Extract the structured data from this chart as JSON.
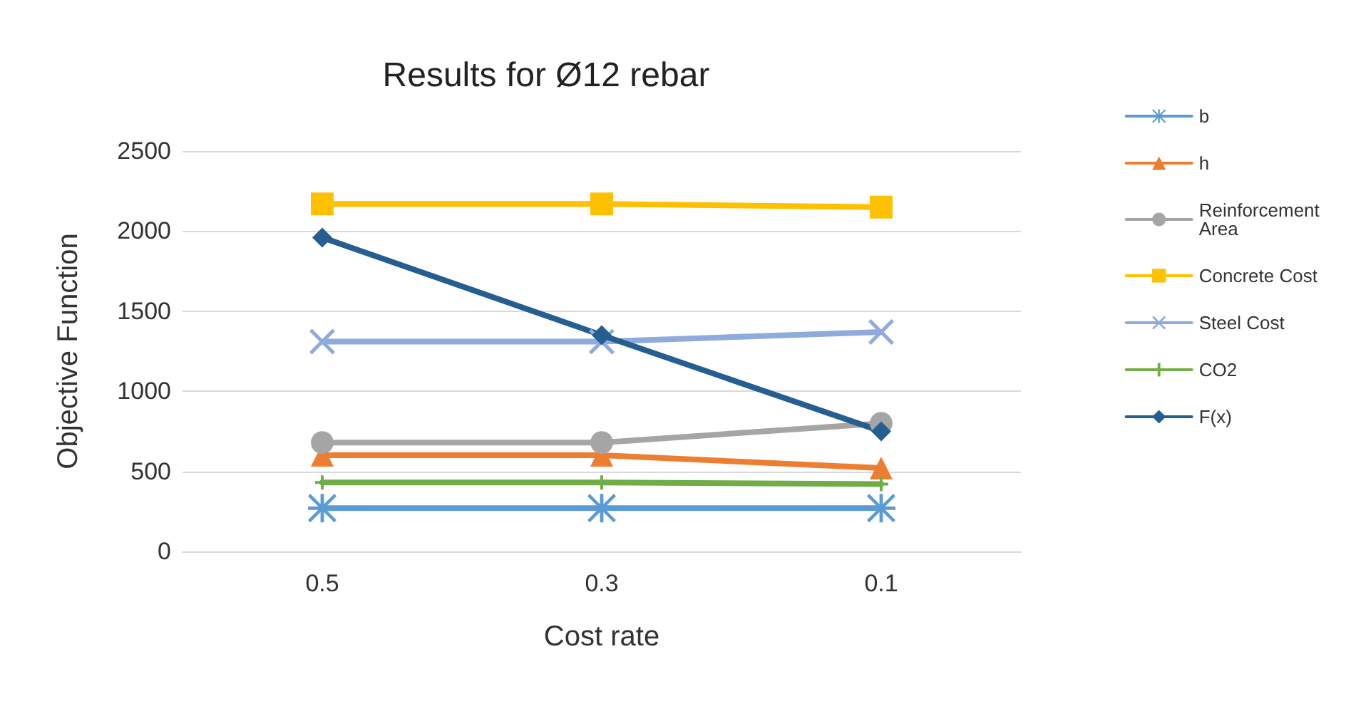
{
  "chart_data": {
    "type": "line",
    "title": "Results for Ø12 rebar",
    "xlabel": "Cost rate",
    "ylabel": "Objective Function",
    "categories": [
      "0.5",
      "0.3",
      "0.1"
    ],
    "series": [
      {
        "name": "b",
        "color": "#5b9bd5",
        "marker": "star",
        "values": [
          270,
          270,
          270
        ]
      },
      {
        "name": "h",
        "color": "#ed7d31",
        "marker": "triangle",
        "values": [
          600,
          600,
          520
        ]
      },
      {
        "name": "Reinforcement Area",
        "color": "#a5a5a5",
        "marker": "circle",
        "values": [
          680,
          680,
          800
        ]
      },
      {
        "name": "Concrete Cost",
        "color": "#ffc000",
        "marker": "square",
        "values": [
          2170,
          2170,
          2150
        ]
      },
      {
        "name": "Steel Cost",
        "color": "#8faadc",
        "marker": "cross",
        "values": [
          1310,
          1310,
          1370
        ]
      },
      {
        "name": "CO2",
        "color": "#70ad47",
        "marker": "plus",
        "values": [
          430,
          430,
          420
        ]
      },
      {
        "name": "F(x)",
        "color": "#255e91",
        "marker": "diamond",
        "values": [
          1960,
          1350,
          750
        ]
      }
    ],
    "ylim": [
      0,
      2500
    ],
    "yticks": [
      0,
      500,
      1000,
      1500,
      2000,
      2500
    ],
    "grid": "y",
    "legend": "right",
    "line_style": "solid"
  }
}
